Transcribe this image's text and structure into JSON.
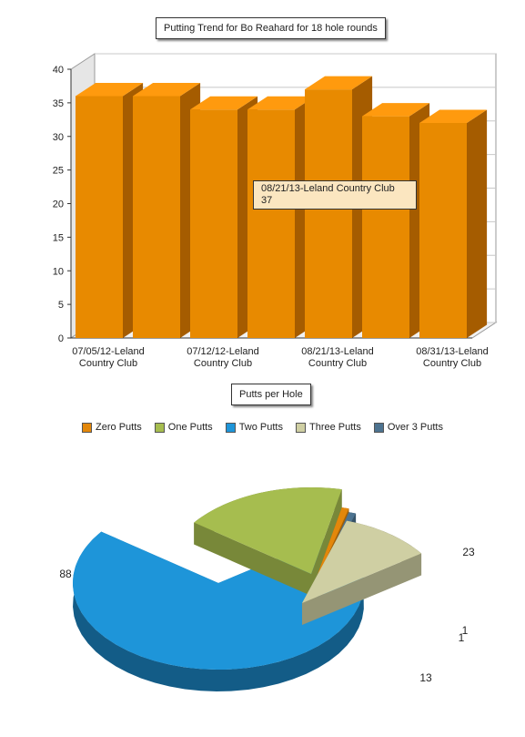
{
  "bar_title": "Putting Trend for Bo Reahard for 18 hole rounds",
  "pie_title": "Putts per Hole",
  "tooltip": {
    "label": "08/21/13-Leland Country Club",
    "value": "37"
  },
  "chart_data": [
    {
      "type": "bar",
      "title": "Putting Trend for Bo Reahard for 18 hole rounds",
      "categories": [
        "07/05/12-Leland Country Club",
        "",
        "07/12/12-Leland Country Club",
        "",
        "08/21/13-Leland Country Club",
        "",
        "08/31/13-Leland Country Club"
      ],
      "category_labels_shown": [
        {
          "line1": "07/05/12-Leland",
          "line2": "Country Club"
        },
        {
          "line1": "07/12/12-Leland",
          "line2": "Country Club"
        },
        {
          "line1": "08/21/13-Leland",
          "line2": "Country Club"
        },
        {
          "line1": "08/31/13-Leland",
          "line2": "Country Club"
        }
      ],
      "values": [
        36,
        36,
        34,
        34,
        37,
        33,
        32
      ],
      "ylim": [
        0,
        40
      ],
      "yticks": [
        "0",
        "5",
        "10",
        "15",
        "20",
        "25",
        "30",
        "35",
        "40"
      ],
      "grid": true,
      "color": "#e88a00"
    },
    {
      "type": "pie",
      "title": "Putts per Hole",
      "legend_position": "top",
      "slices": [
        {
          "name": "Zero Putts",
          "value": 1,
          "label": "1",
          "color": "#e3870a"
        },
        {
          "name": "One Putts",
          "value": 23,
          "label": "23",
          "color": "#a6bd4f"
        },
        {
          "name": "Two Putts",
          "value": 88,
          "label": "88",
          "color": "#1e95d9"
        },
        {
          "name": "Three Putts",
          "value": 13,
          "label": "13",
          "color": "#cfcfa3"
        },
        {
          "name": "Over 3 Putts",
          "value": 1,
          "label": "1",
          "color": "#4d7390"
        }
      ]
    }
  ]
}
